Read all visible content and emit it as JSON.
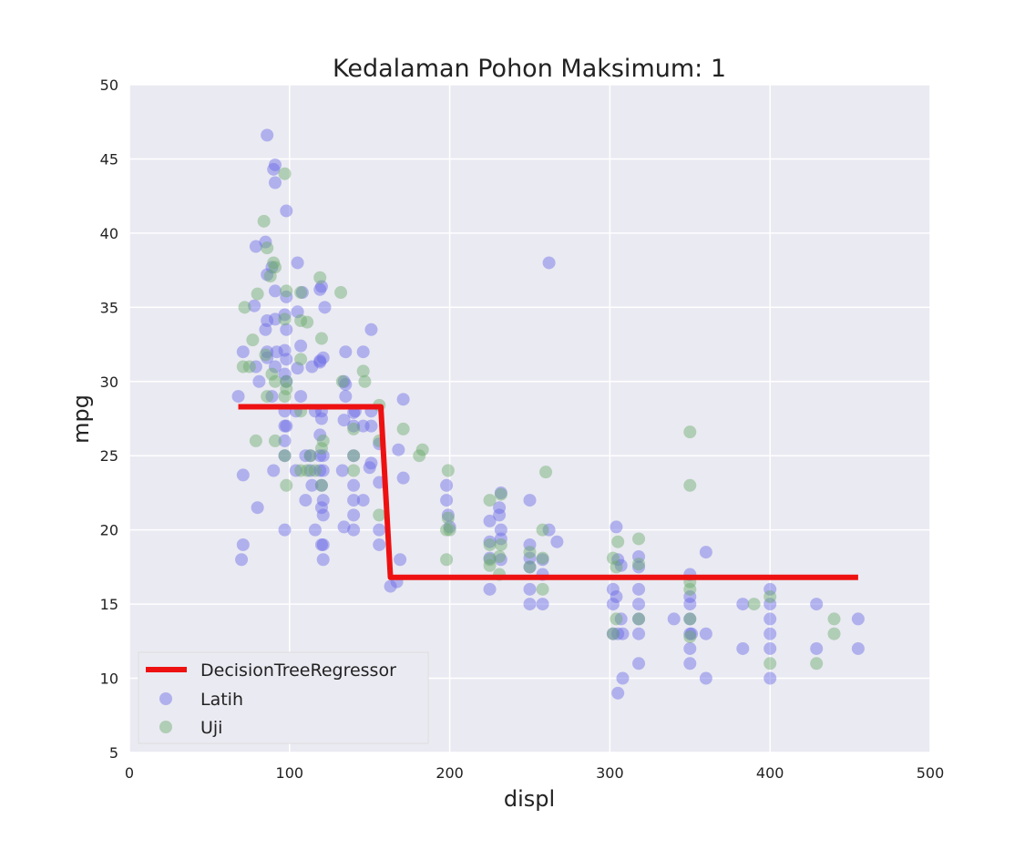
{
  "chart_data": {
    "type": "scatter",
    "title": "Kedalaman Pohon Maksimum: 1",
    "xlabel": "displ",
    "ylabel": "mpg",
    "xlim": [
      0,
      500
    ],
    "ylim": [
      5,
      50
    ],
    "xticks": [
      0,
      100,
      200,
      300,
      400,
      500
    ],
    "yticks": [
      5,
      10,
      15,
      20,
      25,
      30,
      35,
      40,
      45,
      50
    ],
    "grid": true,
    "legend_position": "lower-left",
    "colors": {
      "background": "#eaeaf2",
      "grid": "#ffffff",
      "train": "#6a6ae6",
      "test": "#6aab6a",
      "regressor": "#ee1111"
    },
    "series": [
      {
        "name": "DecisionTreeRegressor",
        "kind": "line",
        "step": true,
        "x": [
          68,
          157,
          163,
          455
        ],
        "y": [
          28.3,
          28.3,
          16.8,
          16.8
        ]
      },
      {
        "name": "Latih",
        "kind": "scatter",
        "points": [
          [
            86,
            46.6
          ],
          [
            91,
            44.6
          ],
          [
            90,
            44.3
          ],
          [
            91,
            43.4
          ],
          [
            98,
            41.5
          ],
          [
            85,
            39.4
          ],
          [
            79,
            39.1
          ],
          [
            105,
            38
          ],
          [
            89,
            37.7
          ],
          [
            86,
            37.2
          ],
          [
            91,
            36.1
          ],
          [
            98,
            35.7
          ],
          [
            108,
            36
          ],
          [
            119,
            36.2
          ],
          [
            120,
            36.4
          ],
          [
            78,
            35.1
          ],
          [
            97,
            34.5
          ],
          [
            105,
            34.7
          ],
          [
            86,
            34.1
          ],
          [
            91,
            34.2
          ],
          [
            122,
            35
          ],
          [
            107,
            32.4
          ],
          [
            98,
            33.5
          ],
          [
            85,
            33.5
          ],
          [
            151,
            33.5
          ],
          [
            86,
            32
          ],
          [
            92,
            32
          ],
          [
            97,
            32.1
          ],
          [
            71,
            32
          ],
          [
            135,
            32
          ],
          [
            146,
            32
          ],
          [
            86,
            31.6
          ],
          [
            98,
            31.5
          ],
          [
            119,
            31.4
          ],
          [
            119,
            31.3
          ],
          [
            91,
            31
          ],
          [
            79,
            31
          ],
          [
            105,
            30.9
          ],
          [
            114,
            31
          ],
          [
            121,
            31.6
          ],
          [
            81,
            30
          ],
          [
            97,
            30.5
          ],
          [
            98,
            30
          ],
          [
            134,
            30
          ],
          [
            135,
            29.8
          ],
          [
            120,
            28
          ],
          [
            140,
            27.9
          ],
          [
            107,
            29
          ],
          [
            89,
            29
          ],
          [
            68,
            29
          ],
          [
            135,
            29
          ],
          [
            171,
            28.8
          ],
          [
            97,
            28
          ],
          [
            104,
            28
          ],
          [
            116,
            28
          ],
          [
            141,
            28
          ],
          [
            151,
            28
          ],
          [
            120,
            27.5
          ],
          [
            134,
            27.4
          ],
          [
            98,
            27
          ],
          [
            140,
            27
          ],
          [
            146,
            27
          ],
          [
            151,
            27
          ],
          [
            97,
            27
          ],
          [
            97,
            26
          ],
          [
            119,
            26.4
          ],
          [
            168,
            25.4
          ],
          [
            97,
            25
          ],
          [
            110,
            25
          ],
          [
            113,
            25
          ],
          [
            119,
            25
          ],
          [
            121,
            25
          ],
          [
            140,
            25
          ],
          [
            156,
            25.8
          ],
          [
            104,
            24
          ],
          [
            113,
            24
          ],
          [
            119,
            24
          ],
          [
            121,
            24
          ],
          [
            71,
            23.7
          ],
          [
            90,
            24
          ],
          [
            133,
            24
          ],
          [
            150,
            24.2
          ],
          [
            151,
            24.5
          ],
          [
            171,
            23.5
          ],
          [
            114,
            23
          ],
          [
            120,
            23
          ],
          [
            140,
            23
          ],
          [
            156,
            23.2
          ],
          [
            110,
            22
          ],
          [
            121,
            22
          ],
          [
            140,
            22
          ],
          [
            146,
            22
          ],
          [
            120,
            21.5
          ],
          [
            121,
            21
          ],
          [
            140,
            21
          ],
          [
            80,
            21.5
          ],
          [
            116,
            20
          ],
          [
            97,
            20
          ],
          [
            134,
            20.2
          ],
          [
            140,
            20
          ],
          [
            156,
            20
          ],
          [
            71,
            19
          ],
          [
            120,
            19
          ],
          [
            121,
            19
          ],
          [
            156,
            19
          ],
          [
            70,
            18
          ],
          [
            121,
            18
          ],
          [
            169,
            18
          ],
          [
            163,
            16.2
          ],
          [
            167,
            16.5
          ],
          [
            198,
            23
          ],
          [
            198,
            22
          ],
          [
            199,
            21
          ],
          [
            200,
            20.2
          ],
          [
            225,
            20.6
          ],
          [
            225,
            19.2
          ],
          [
            225,
            18.1
          ],
          [
            232,
            22.5
          ],
          [
            231,
            21.5
          ],
          [
            231,
            21
          ],
          [
            232,
            20
          ],
          [
            232,
            19.4
          ],
          [
            232,
            18
          ],
          [
            225,
            16
          ],
          [
            250,
            22
          ],
          [
            250,
            19
          ],
          [
            250,
            18.1
          ],
          [
            250,
            17.5
          ],
          [
            250,
            16
          ],
          [
            250,
            15
          ],
          [
            258,
            18
          ],
          [
            258,
            17
          ],
          [
            258,
            15
          ],
          [
            262,
            38
          ],
          [
            262,
            20
          ],
          [
            267,
            19.2
          ],
          [
            304,
            20.2
          ],
          [
            305,
            18
          ],
          [
            307,
            17.6
          ],
          [
            302,
            16
          ],
          [
            304,
            15.5
          ],
          [
            302,
            15
          ],
          [
            307,
            14
          ],
          [
            305,
            13
          ],
          [
            302,
            13
          ],
          [
            308,
            13
          ],
          [
            305,
            9
          ],
          [
            308,
            10
          ],
          [
            318,
            18.2
          ],
          [
            318,
            17.5
          ],
          [
            318,
            16
          ],
          [
            318,
            15
          ],
          [
            318,
            14
          ],
          [
            318,
            13
          ],
          [
            318,
            11
          ],
          [
            340,
            14
          ],
          [
            350,
            17
          ],
          [
            350,
            15.5
          ],
          [
            350,
            15
          ],
          [
            350,
            14
          ],
          [
            350,
            13
          ],
          [
            350,
            12
          ],
          [
            350,
            11
          ],
          [
            351,
            13
          ],
          [
            360,
            18.5
          ],
          [
            360,
            13
          ],
          [
            360,
            10
          ],
          [
            383,
            15
          ],
          [
            383,
            12
          ],
          [
            400,
            16
          ],
          [
            400,
            15
          ],
          [
            400,
            14
          ],
          [
            400,
            13
          ],
          [
            400,
            12
          ],
          [
            400,
            10
          ],
          [
            429,
            15
          ],
          [
            429,
            12
          ],
          [
            455,
            14
          ],
          [
            455,
            12
          ]
        ]
      },
      {
        "name": "Uji",
        "kind": "scatter",
        "points": [
          [
            97,
            44
          ],
          [
            84,
            40.8
          ],
          [
            86,
            39
          ],
          [
            90,
            38
          ],
          [
            91,
            37.7
          ],
          [
            88,
            37.1
          ],
          [
            98,
            36.1
          ],
          [
            119,
            37
          ],
          [
            107,
            36
          ],
          [
            132,
            36
          ],
          [
            80,
            35.9
          ],
          [
            72,
            35
          ],
          [
            97,
            34.2
          ],
          [
            111,
            34
          ],
          [
            107,
            34.1
          ],
          [
            120,
            32.9
          ],
          [
            77,
            32.8
          ],
          [
            85,
            31.8
          ],
          [
            71,
            31
          ],
          [
            75,
            31
          ],
          [
            107,
            31.5
          ],
          [
            146,
            30.7
          ],
          [
            89,
            30.5
          ],
          [
            91,
            30
          ],
          [
            98,
            30
          ],
          [
            147,
            30
          ],
          [
            86,
            29
          ],
          [
            97,
            29
          ],
          [
            98,
            29.5
          ],
          [
            133,
            30
          ],
          [
            156,
            28.4
          ],
          [
            107,
            28
          ],
          [
            140,
            26.8
          ],
          [
            171,
            26.8
          ],
          [
            156,
            26
          ],
          [
            79,
            26
          ],
          [
            91,
            26
          ],
          [
            121,
            26
          ],
          [
            183,
            25.4
          ],
          [
            140,
            25
          ],
          [
            181,
            25
          ],
          [
            97,
            25
          ],
          [
            113,
            25
          ],
          [
            120,
            25.5
          ],
          [
            107,
            24
          ],
          [
            111,
            24
          ],
          [
            116,
            24
          ],
          [
            140,
            24
          ],
          [
            199,
            24
          ],
          [
            260,
            23.9
          ],
          [
            98,
            23
          ],
          [
            120,
            23
          ],
          [
            156,
            21
          ],
          [
            225,
            22
          ],
          [
            232,
            22.4
          ],
          [
            199,
            20.8
          ],
          [
            200,
            20
          ],
          [
            198,
            20
          ],
          [
            225,
            19
          ],
          [
            258,
            20
          ],
          [
            232,
            19
          ],
          [
            225,
            18
          ],
          [
            231,
            18.2
          ],
          [
            250,
            18.5
          ],
          [
            198,
            18
          ],
          [
            225,
            17.6
          ],
          [
            231,
            17
          ],
          [
            250,
            17.5
          ],
          [
            258,
            18.1
          ],
          [
            258,
            16
          ],
          [
            302,
            18.1
          ],
          [
            304,
            17.5
          ],
          [
            305,
            19.2
          ],
          [
            318,
            19.4
          ],
          [
            304,
            14
          ],
          [
            302,
            13
          ],
          [
            318,
            14
          ],
          [
            318,
            17.7
          ],
          [
            350,
            26.6
          ],
          [
            350,
            23
          ],
          [
            350,
            16.5
          ],
          [
            350,
            14
          ],
          [
            350,
            12.8
          ],
          [
            350,
            16
          ],
          [
            390,
            15
          ],
          [
            400,
            15.5
          ],
          [
            400,
            11
          ],
          [
            429,
            11
          ],
          [
            440,
            14
          ],
          [
            440,
            13
          ]
        ]
      }
    ]
  }
}
